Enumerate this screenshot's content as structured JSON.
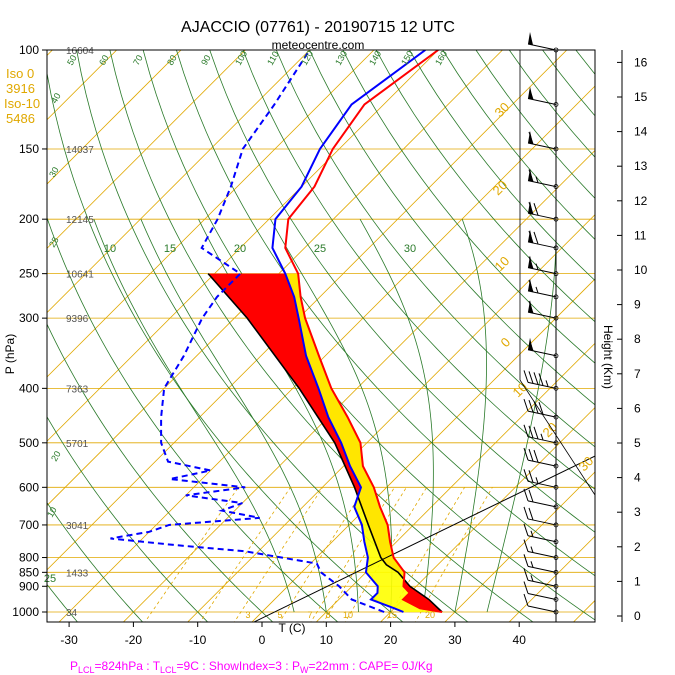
{
  "header": {
    "title": "AJACCIO (07761) - 20190715 12 UTC",
    "subtitle": "meteocentre.com"
  },
  "side_info": {
    "iso0_label": "Iso 0",
    "iso0_value": "3916",
    "iso10_label": "Iso-10",
    "iso10_value": "5486"
  },
  "footer": {
    "plcl": "P",
    "plcl_sub": "LCL",
    "plcl_val": "=824hPa : T",
    "tlcl_sub": "LCL",
    "tlcl_val": "=9C : ShowIndex=3 : P",
    "pw_sub": "W",
    "rest": "=22mm : CAPE= 0J/Kg"
  },
  "colors": {
    "temperature": "#ff0000",
    "dewpoint": "#0000ff",
    "cape_fill": "#ff0000",
    "cin_fill": "#ffff00",
    "isotherm": "#e0a800",
    "adiabat": "#2a7a2a",
    "mixing_ratio": "#e0a800"
  },
  "chart_data": {
    "type": "skew-t",
    "xlabel": "T (C)",
    "ylabel": "P (hPa)",
    "y2label": "Height (Km)",
    "x_ticks": [
      -30,
      -20,
      -10,
      0,
      10,
      20,
      30,
      40
    ],
    "p_ticks": [
      100,
      150,
      200,
      250,
      300,
      400,
      500,
      600,
      700,
      800,
      850,
      900,
      1000
    ],
    "height_ticks": [
      0,
      1,
      2,
      3,
      4,
      5,
      6,
      7,
      8,
      9,
      10,
      11,
      12,
      13,
      14,
      15,
      16
    ],
    "geopotential_heights": [
      {
        "p": 100,
        "z": "16604"
      },
      {
        "p": 150,
        "z": "14037"
      },
      {
        "p": 200,
        "z": "12145"
      },
      {
        "p": 250,
        "z": "10641"
      },
      {
        "p": 300,
        "z": "9396"
      },
      {
        "p": 400,
        "z": "7363"
      },
      {
        "p": 500,
        "z": "5701"
      },
      {
        "p": 700,
        "z": "3041"
      },
      {
        "p": 850,
        "z": "1433"
      },
      {
        "p": 1000,
        "z": "34"
      }
    ],
    "isotherm_labels": [
      "0",
      "10",
      "20",
      "30"
    ],
    "mixing_ratio_labels": [
      "3",
      "5",
      "7",
      "8",
      "10",
      "15",
      "20"
    ],
    "adiabat_labels_top": [
      "50",
      "60",
      "70",
      "80",
      "90",
      "100",
      "110",
      "120",
      "130",
      "140",
      "150",
      "160"
    ],
    "adiabat_labels_left": [
      "40",
      "30",
      "25",
      "20",
      "10"
    ],
    "moist_adiabat_labels": [
      "10",
      "15",
      "20",
      "25",
      "30",
      "25"
    ],
    "temperature": [
      {
        "p": 1000,
        "t": 28
      },
      {
        "p": 985,
        "t": 24
      },
      {
        "p": 950,
        "t": 20
      },
      {
        "p": 925,
        "t": 20
      },
      {
        "p": 900,
        "t": 18
      },
      {
        "p": 850,
        "t": 16
      },
      {
        "p": 800,
        "t": 12
      },
      {
        "p": 750,
        "t": 9
      },
      {
        "p": 700,
        "t": 6
      },
      {
        "p": 650,
        "t": 2
      },
      {
        "p": 600,
        "t": -2
      },
      {
        "p": 550,
        "t": -7
      },
      {
        "p": 500,
        "t": -11
      },
      {
        "p": 450,
        "t": -17
      },
      {
        "p": 400,
        "t": -24
      },
      {
        "p": 350,
        "t": -31
      },
      {
        "p": 300,
        "t": -39
      },
      {
        "p": 275,
        "t": -43
      },
      {
        "p": 250,
        "t": -47
      },
      {
        "p": 225,
        "t": -53
      },
      {
        "p": 200,
        "t": -57
      },
      {
        "p": 175,
        "t": -58
      },
      {
        "p": 150,
        "t": -61
      },
      {
        "p": 125,
        "t": -63
      },
      {
        "p": 100,
        "t": -60
      }
    ],
    "dewpoint": [
      {
        "p": 1000,
        "t": 22
      },
      {
        "p": 985,
        "t": 20
      },
      {
        "p": 950,
        "t": 15
      },
      {
        "p": 925,
        "t": 15
      },
      {
        "p": 900,
        "t": 14
      },
      {
        "p": 850,
        "t": 10
      },
      {
        "p": 800,
        "t": 8
      },
      {
        "p": 750,
        "t": 5
      },
      {
        "p": 700,
        "t": 2
      },
      {
        "p": 650,
        "t": -2
      },
      {
        "p": 600,
        "t": -4
      },
      {
        "p": 550,
        "t": -9
      },
      {
        "p": 500,
        "t": -14
      },
      {
        "p": 450,
        "t": -20
      },
      {
        "p": 400,
        "t": -26
      },
      {
        "p": 350,
        "t": -33
      },
      {
        "p": 300,
        "t": -40
      },
      {
        "p": 275,
        "t": -44
      },
      {
        "p": 250,
        "t": -49
      },
      {
        "p": 225,
        "t": -55
      },
      {
        "p": 200,
        "t": -59
      },
      {
        "p": 175,
        "t": -60
      },
      {
        "p": 150,
        "t": -63
      },
      {
        "p": 125,
        "t": -65
      },
      {
        "p": 100,
        "t": -62
      }
    ],
    "dewpoint_dry": [
      {
        "p": 1000,
        "t": 19
      },
      {
        "p": 950,
        "t": 12
      },
      {
        "p": 900,
        "t": 8
      },
      {
        "p": 850,
        "t": 3
      },
      {
        "p": 820,
        "t": 1
      },
      {
        "p": 780,
        "t": -12
      },
      {
        "p": 760,
        "t": -24
      },
      {
        "p": 740,
        "t": -35
      },
      {
        "p": 720,
        "t": -30
      },
      {
        "p": 700,
        "t": -28
      },
      {
        "p": 680,
        "t": -15
      },
      {
        "p": 660,
        "t": -22
      },
      {
        "p": 640,
        "t": -20
      },
      {
        "p": 620,
        "t": -30
      },
      {
        "p": 600,
        "t": -22
      },
      {
        "p": 580,
        "t": -35
      },
      {
        "p": 560,
        "t": -30
      },
      {
        "p": 540,
        "t": -38
      },
      {
        "p": 500,
        "t": -42
      },
      {
        "p": 450,
        "t": -46
      },
      {
        "p": 400,
        "t": -50
      },
      {
        "p": 350,
        "t": -52
      },
      {
        "p": 300,
        "t": -55
      },
      {
        "p": 275,
        "t": -56
      },
      {
        "p": 250,
        "t": -56
      },
      {
        "p": 225,
        "t": -66
      },
      {
        "p": 200,
        "t": -68
      },
      {
        "p": 175,
        "t": -71
      },
      {
        "p": 150,
        "t": -75
      },
      {
        "p": 125,
        "t": -77
      },
      {
        "p": 100,
        "t": -80
      }
    ],
    "parcel": [
      {
        "p": 1000,
        "t": 28
      },
      {
        "p": 950,
        "t": 24
      },
      {
        "p": 900,
        "t": 19
      },
      {
        "p": 850,
        "t": 15
      },
      {
        "p": 824,
        "t": 12
      },
      {
        "p": 800,
        "t": 10
      },
      {
        "p": 700,
        "t": 3
      },
      {
        "p": 600,
        "t": -5
      },
      {
        "p": 500,
        "t": -15
      },
      {
        "p": 400,
        "t": -29
      },
      {
        "p": 300,
        "t": -48
      },
      {
        "p": 250,
        "t": -61
      }
    ],
    "wind_barbs": [
      {
        "p": 1000,
        "speed": 10,
        "dir": 250
      },
      {
        "p": 950,
        "speed": 10,
        "dir": 260
      },
      {
        "p": 900,
        "speed": 15,
        "dir": 270
      },
      {
        "p": 850,
        "speed": 15,
        "dir": 270
      },
      {
        "p": 800,
        "speed": 15,
        "dir": 280
      },
      {
        "p": 750,
        "speed": 15,
        "dir": 280
      },
      {
        "p": 700,
        "speed": 20,
        "dir": 280
      },
      {
        "p": 650,
        "speed": 20,
        "dir": 280
      },
      {
        "p": 600,
        "speed": 25,
        "dir": 280
      },
      {
        "p": 550,
        "speed": 30,
        "dir": 270
      },
      {
        "p": 500,
        "speed": 35,
        "dir": 270
      },
      {
        "p": 450,
        "speed": 40,
        "dir": 270
      },
      {
        "p": 400,
        "speed": 45,
        "dir": 270
      },
      {
        "p": 350,
        "speed": 55,
        "dir": 270
      },
      {
        "p": 300,
        "speed": 60,
        "dir": 270
      },
      {
        "p": 275,
        "speed": 65,
        "dir": 270
      },
      {
        "p": 250,
        "speed": 65,
        "dir": 270
      },
      {
        "p": 225,
        "speed": 70,
        "dir": 270
      },
      {
        "p": 200,
        "speed": 70,
        "dir": 270
      },
      {
        "p": 175,
        "speed": 65,
        "dir": 270
      },
      {
        "p": 150,
        "speed": 60,
        "dir": 270
      },
      {
        "p": 125,
        "speed": 55,
        "dir": 270
      },
      {
        "p": 100,
        "speed": 50,
        "dir": 260
      }
    ]
  }
}
